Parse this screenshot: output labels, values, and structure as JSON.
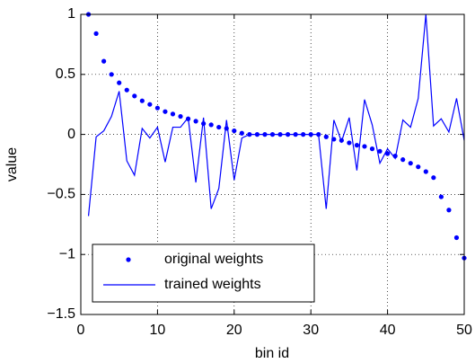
{
  "chart_data": {
    "type": "line",
    "xlabel": "bin id",
    "ylabel": "value",
    "x": [
      1,
      2,
      3,
      4,
      5,
      6,
      7,
      8,
      9,
      10,
      11,
      12,
      13,
      14,
      15,
      16,
      17,
      18,
      19,
      20,
      21,
      22,
      23,
      24,
      25,
      26,
      27,
      28,
      29,
      30,
      31,
      32,
      33,
      34,
      35,
      36,
      37,
      38,
      39,
      40,
      41,
      42,
      43,
      44,
      45,
      46,
      47,
      48,
      49,
      50
    ],
    "series": [
      {
        "name": "original weights",
        "color": "#0000ff",
        "style": "markers",
        "values": [
          1.0,
          0.84,
          0.61,
          0.5,
          0.43,
          0.37,
          0.32,
          0.28,
          0.25,
          0.22,
          0.19,
          0.17,
          0.15,
          0.13,
          0.11,
          0.09,
          0.08,
          0.06,
          0.05,
          0.03,
          0.01,
          0,
          0,
          0,
          0,
          0,
          0,
          0,
          0,
          0,
          0,
          -0.02,
          -0.04,
          -0.05,
          -0.07,
          -0.09,
          -0.1,
          -0.12,
          -0.14,
          -0.16,
          -0.18,
          -0.21,
          -0.24,
          -0.27,
          -0.31,
          -0.36,
          -0.52,
          -0.63,
          -0.86,
          -1.03
        ]
      },
      {
        "name": "trained weights",
        "color": "#0000ff",
        "style": "line",
        "values": [
          -0.68,
          -0.02,
          0.03,
          0.15,
          0.36,
          -0.22,
          -0.34,
          0.05,
          -0.03,
          0.06,
          -0.23,
          0.06,
          0.06,
          0.14,
          -0.4,
          0.14,
          -0.62,
          -0.45,
          0.12,
          -0.38,
          -0.03,
          0,
          0,
          0,
          0,
          0,
          0,
          0,
          0,
          0,
          0,
          -0.62,
          0.12,
          -0.06,
          0.14,
          -0.3,
          0.29,
          0.08,
          -0.24,
          -0.12,
          -0.2,
          0.12,
          0.06,
          0.3,
          1.0,
          0.07,
          0.13,
          0.02,
          0.3,
          -0.05
        ]
      }
    ],
    "xlim": [
      0,
      50
    ],
    "xticks": [
      0,
      10,
      20,
      30,
      40,
      50
    ],
    "ylim": [
      -1.5,
      1
    ],
    "yticks": [
      {
        "value": -1.5,
        "label": "−1.5"
      },
      {
        "value": -1,
        "label": "−1"
      },
      {
        "value": -0.5,
        "label": "−0.5"
      },
      0,
      0.5,
      1
    ],
    "grid": true,
    "legend": "lower left"
  }
}
